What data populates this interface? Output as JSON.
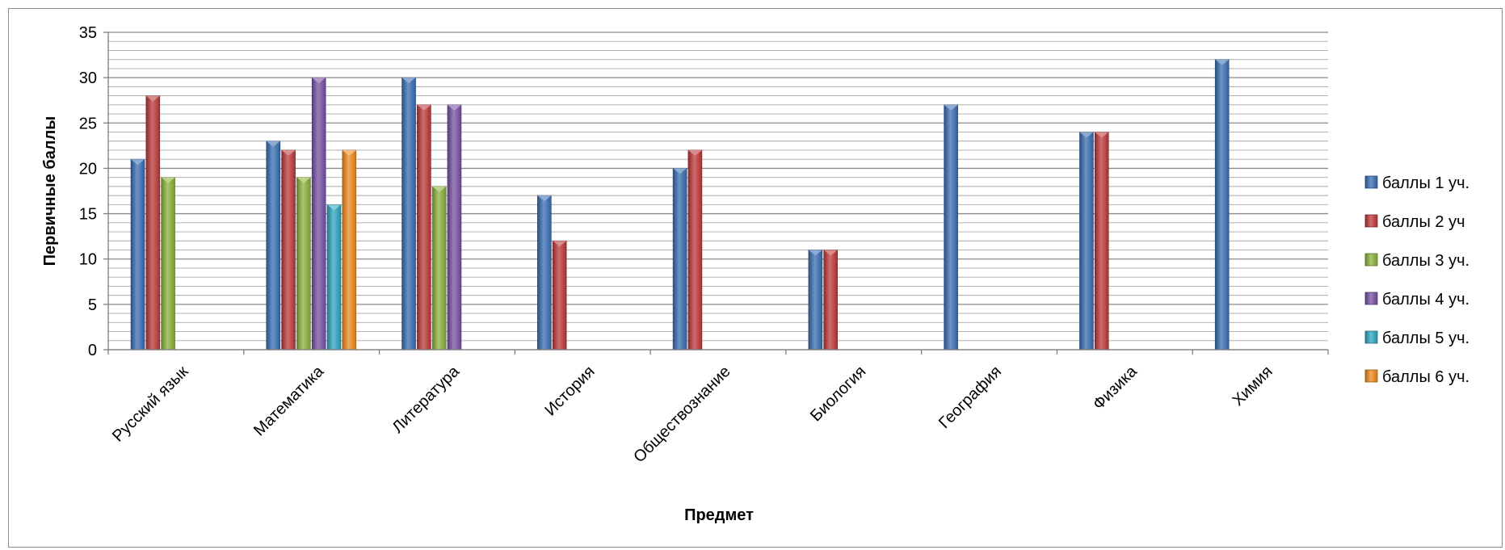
{
  "chart_data": {
    "type": "bar",
    "title": "",
    "xlabel": "Предмет",
    "ylabel": "Первичные баллы",
    "ylim": [
      0,
      35
    ],
    "major_ticks": [
      0,
      5,
      10,
      15,
      20,
      25,
      30,
      35
    ],
    "minor_step": 1,
    "grid": true,
    "legend_position": "right",
    "categories": [
      "Русский язык",
      "Математика",
      "Литература",
      "История",
      "Обществознание",
      "Биология",
      "География",
      "Физика",
      "Химия"
    ],
    "series": [
      {
        "name": "баллы 1 уч.",
        "color": "#3a6fb5",
        "values": [
          21,
          23,
          30,
          17,
          20,
          11,
          27,
          24,
          32
        ]
      },
      {
        "name": "баллы 2 уч",
        "color": "#c0393b",
        "values": [
          28,
          22,
          27,
          12,
          22,
          11,
          null,
          24,
          null
        ]
      },
      {
        "name": "баллы 3 уч.",
        "color": "#8cb43c",
        "values": [
          19,
          19,
          18,
          null,
          null,
          null,
          null,
          null,
          null
        ]
      },
      {
        "name": "баллы 4 уч.",
        "color": "#7952a6",
        "values": [
          null,
          30,
          27,
          null,
          null,
          null,
          null,
          null,
          null
        ]
      },
      {
        "name": "баллы 5 уч.",
        "color": "#2fa7c2",
        "values": [
          null,
          16,
          null,
          null,
          null,
          null,
          null,
          null,
          null
        ]
      },
      {
        "name": "баллы 6 уч.",
        "color": "#f08c1e",
        "values": [
          null,
          22,
          null,
          null,
          null,
          null,
          null,
          null,
          null
        ]
      }
    ]
  }
}
